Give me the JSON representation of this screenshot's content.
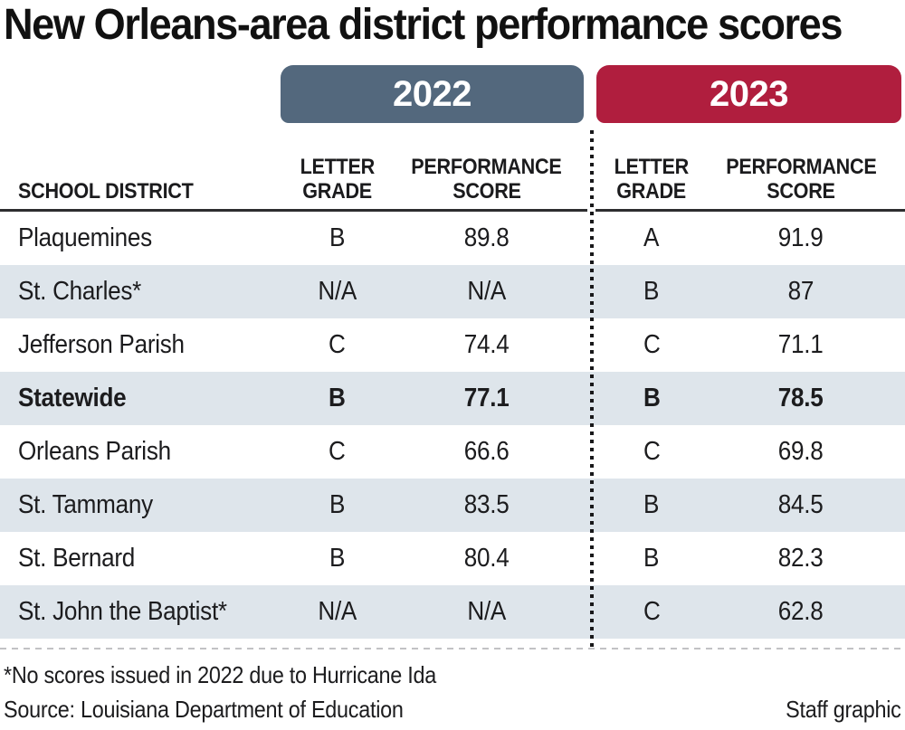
{
  "title": "New Orleans-area district performance scores",
  "year_headers": {
    "y2022": {
      "label": "2022",
      "color": "#53687d"
    },
    "y2023": {
      "label": "2023",
      "color": "#b01e3e"
    }
  },
  "header": {
    "district": "SCHOOL DISTRICT",
    "letter": "LETTER",
    "grade": "GRADE",
    "performance": "PERFORMANCE",
    "score": "SCORE"
  },
  "table": {
    "rows": [
      {
        "district": "Plaquemines",
        "grade22": "B",
        "score22": "89.8",
        "grade23": "A",
        "score23": "91.9",
        "bold": false
      },
      {
        "district": "St. Charles*",
        "grade22": "N/A",
        "score22": "N/A",
        "grade23": "B",
        "score23": "87",
        "bold": false
      },
      {
        "district": "Jefferson Parish",
        "grade22": "C",
        "score22": "74.4",
        "grade23": "C",
        "score23": "71.1",
        "bold": false
      },
      {
        "district": "Statewide",
        "grade22": "B",
        "score22": "77.1",
        "grade23": "B",
        "score23": "78.5",
        "bold": true
      },
      {
        "district": "Orleans Parish",
        "grade22": "C",
        "score22": "66.6",
        "grade23": "C",
        "score23": "69.8",
        "bold": false
      },
      {
        "district": "St. Tammany",
        "grade22": "B",
        "score22": "83.5",
        "grade23": "B",
        "score23": "84.5",
        "bold": false
      },
      {
        "district": "St. Bernard",
        "grade22": "B",
        "score22": "80.4",
        "grade23": "B",
        "score23": "82.3",
        "bold": false
      },
      {
        "district": "St. John the Baptist*",
        "grade22": "N/A",
        "score22": "N/A",
        "grade23": "C",
        "score23": "62.8",
        "bold": false
      }
    ]
  },
  "footnote": "*No scores issued in 2022 due to Hurricane Ida",
  "source": "Source: Louisiana Department of Education",
  "credit": "Staff graphic",
  "colors": {
    "pill_2022": "#53687d",
    "pill_2023": "#b01e3e",
    "row_stripe": "#dee5eb",
    "text": "#1c1c1e",
    "rule": "#2d2d2f"
  },
  "chart_data": {
    "type": "table",
    "title": "New Orleans-area district performance scores",
    "column_groups": [
      "2022",
      "2023"
    ],
    "columns": [
      "SCHOOL DISTRICT",
      "2022 LETTER GRADE",
      "2022 PERFORMANCE SCORE",
      "2023 LETTER GRADE",
      "2023 PERFORMANCE SCORE"
    ],
    "rows": [
      [
        "Plaquemines",
        "B",
        "89.8",
        "A",
        "91.9"
      ],
      [
        "St. Charles*",
        "N/A",
        "N/A",
        "B",
        "87"
      ],
      [
        "Jefferson Parish",
        "C",
        "74.4",
        "C",
        "71.1"
      ],
      [
        "Statewide",
        "B",
        "77.1",
        "B",
        "78.5"
      ],
      [
        "Orleans Parish",
        "C",
        "66.6",
        "C",
        "69.8"
      ],
      [
        "St. Tammany",
        "B",
        "83.5",
        "B",
        "84.5"
      ],
      [
        "St. Bernard",
        "B",
        "80.4",
        "B",
        "82.3"
      ],
      [
        "St. John the Baptist*",
        "N/A",
        "N/A",
        "C",
        "62.8"
      ]
    ],
    "footnote": "*No scores issued in 2022 due to Hurricane Ida",
    "source": "Source: Louisiana Department of Education",
    "credit": "Staff graphic"
  }
}
